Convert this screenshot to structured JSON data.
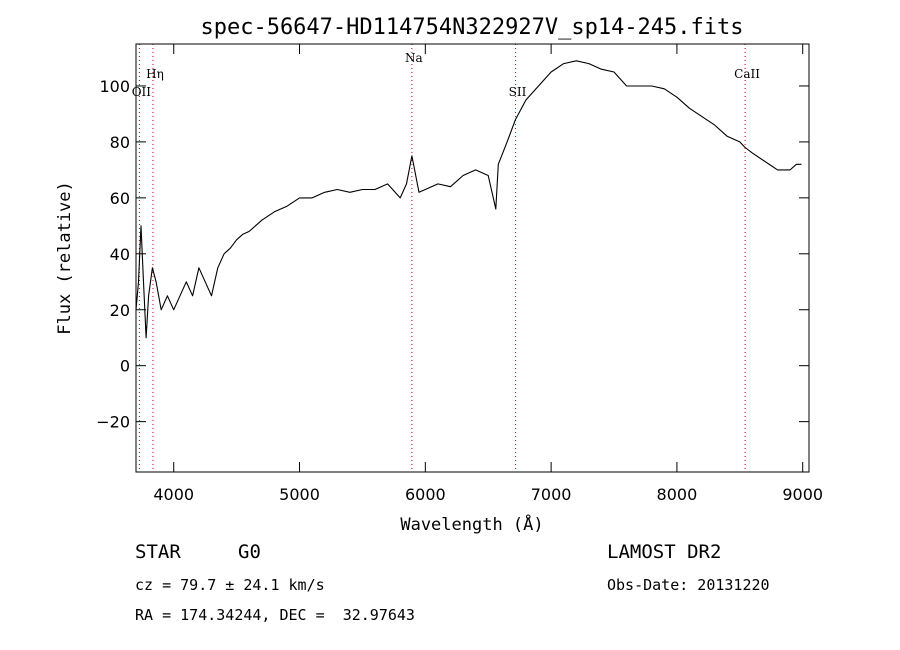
{
  "chart_data": {
    "type": "line",
    "title": "spec-56647-HD114754N322927V_sp14-245.fits",
    "xlabel": "Wavelength (Å)",
    "ylabel": "Flux (relative)",
    "xlim": [
      3700,
      9050
    ],
    "ylim": [
      -38,
      115
    ],
    "xticks": [
      4000,
      5000,
      6000,
      7000,
      8000,
      9000
    ],
    "yticks": [
      -20,
      0,
      20,
      40,
      60,
      80,
      100
    ],
    "xtick_labels": [
      "4000",
      "5000",
      "6000",
      "7000",
      "8000",
      "9000"
    ],
    "ytick_labels": [
      "−20",
      "0",
      "20",
      "40",
      "60",
      "80",
      "100"
    ],
    "grid": false,
    "line_color": "#000000",
    "marker_color": "#cc0000",
    "spectral_lines": [
      {
        "label": "OII",
        "wavelength": 3727
      },
      {
        "label": "Hη",
        "wavelength": 3835
      },
      {
        "label": "Na",
        "wavelength": 5893
      },
      {
        "label": "SII",
        "wavelength": 6717
      },
      {
        "label": "CaII",
        "wavelength": 8542
      }
    ],
    "series": [
      {
        "x": [
          3700,
          3720,
          3740,
          3760,
          3780,
          3800,
          3830,
          3860,
          3900,
          3950,
          4000,
          4050,
          4100,
          4150,
          4200,
          4250,
          4300,
          4350,
          4400,
          4450,
          4500,
          4550,
          4600,
          4650,
          4700,
          4800,
          4900,
          5000,
          5100,
          5200,
          5300,
          5400,
          5500,
          5600,
          5700,
          5800,
          5850,
          5893,
          5950,
          6000,
          6100,
          6200,
          6300,
          6400,
          6500,
          6560,
          6580,
          6650,
          6717,
          6800,
          6900,
          7000,
          7100,
          7200,
          7300,
          7400,
          7500,
          7600,
          7700,
          7800,
          7900,
          8000,
          8100,
          8200,
          8300,
          8400,
          8450,
          8500,
          8542,
          8600,
          8700,
          8800,
          8900,
          8950,
          8990
        ],
        "y": [
          20,
          30,
          50,
          30,
          10,
          25,
          35,
          30,
          20,
          25,
          20,
          25,
          30,
          25,
          35,
          30,
          25,
          35,
          40,
          42,
          45,
          47,
          48,
          50,
          52,
          55,
          57,
          60,
          60,
          62,
          63,
          62,
          63,
          63,
          65,
          60,
          65,
          75,
          62,
          63,
          65,
          64,
          68,
          70,
          68,
          56,
          72,
          80,
          88,
          95,
          100,
          105,
          108,
          109,
          108,
          106,
          105,
          100,
          100,
          100,
          99,
          96,
          92,
          89,
          86,
          82,
          81,
          80,
          78,
          76,
          73,
          70,
          70,
          72,
          72
        ]
      }
    ]
  },
  "info": {
    "object_class": "STAR",
    "subclass": "G0",
    "survey": "LAMOST DR2",
    "redshift_line": "cz = 79.7 ± 24.1 km/s",
    "obs_date": "Obs-Date: 20131220",
    "coords": "RA = 174.34244, DEC =  32.97643"
  }
}
